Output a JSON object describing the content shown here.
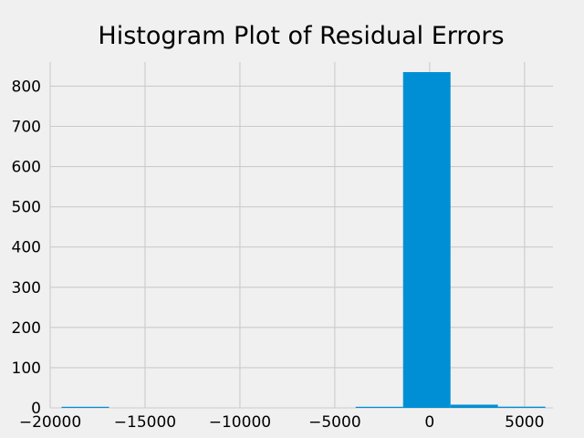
{
  "chart_data": {
    "type": "bar",
    "title": "Histogram Plot of Residual Errors",
    "xlabel": "",
    "ylabel": "",
    "xlim": [
      -20000,
      6500
    ],
    "ylim": [
      0,
      860
    ],
    "x_ticks": [
      -20000,
      -15000,
      -10000,
      -5000,
      0,
      5000
    ],
    "x_tick_labels": [
      "−20000",
      "−15000",
      "−10000",
      "−5000",
      "0",
      "5000"
    ],
    "y_ticks": [
      0,
      100,
      200,
      300,
      400,
      500,
      600,
      700,
      800
    ],
    "y_tick_labels": [
      "0",
      "100",
      "200",
      "300",
      "400",
      "500",
      "600",
      "700",
      "800"
    ],
    "bins": [
      {
        "x0": -19400,
        "x1": -16900,
        "value": 1
      },
      {
        "x0": -16900,
        "x1": -14400,
        "value": 0
      },
      {
        "x0": -14400,
        "x1": -11900,
        "value": 0
      },
      {
        "x0": -11900,
        "x1": -9400,
        "value": 0
      },
      {
        "x0": -9400,
        "x1": -6900,
        "value": 0
      },
      {
        "x0": -6900,
        "x1": -4400,
        "value": 0
      },
      {
        "x0": -3900,
        "x1": -1400,
        "value": 2
      },
      {
        "x0": -1400,
        "x1": 1100,
        "value": 835
      },
      {
        "x0": 1100,
        "x1": 3600,
        "value": 8
      },
      {
        "x0": 3600,
        "x1": 6100,
        "value": 3
      }
    ],
    "grid": true,
    "color": "#008fd5",
    "background": "#f0f0f0"
  }
}
